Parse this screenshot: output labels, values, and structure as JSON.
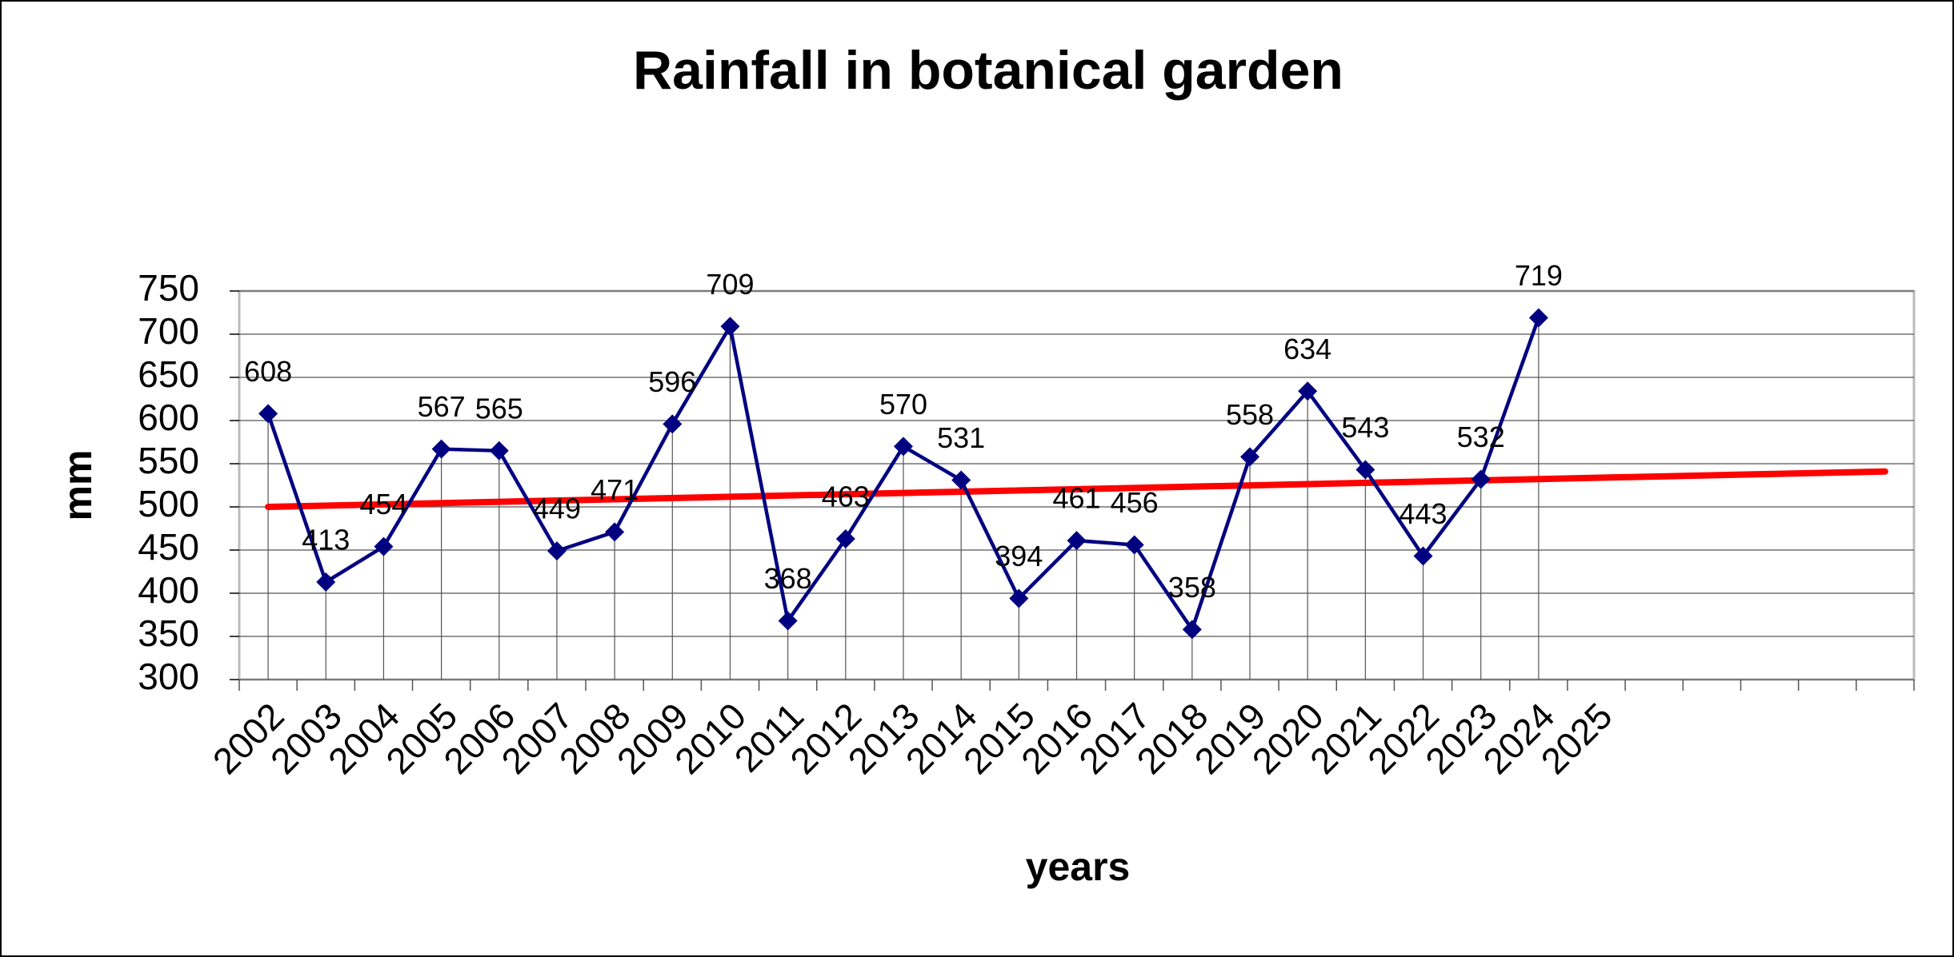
{
  "chart_data": {
    "type": "line",
    "title": "Rainfall in botanical garden",
    "xlabel": "years",
    "ylabel": "mm",
    "categories": [
      "2002",
      "2003",
      "2004",
      "2005",
      "2006",
      "2007",
      "2008",
      "2009",
      "2010",
      "2011",
      "2012",
      "2013",
      "2014",
      "2015",
      "2016",
      "2017",
      "2018",
      "2019",
      "2020",
      "2021",
      "2022",
      "2023",
      "2024",
      "2025",
      null,
      null,
      null,
      null,
      null
    ],
    "series": [
      {
        "color": "#000080",
        "values": [
          608,
          413,
          454,
          567,
          565,
          449,
          471,
          596,
          709,
          368,
          463,
          570,
          531,
          394,
          461,
          456,
          358,
          558,
          634,
          543,
          443,
          532,
          719,
          null,
          null,
          null,
          null,
          null,
          null
        ]
      }
    ],
    "trendline": {
      "color": "#ff0000",
      "values": [
        500,
        541
      ]
    },
    "ylim": [
      300,
      750
    ],
    "yticks": [
      300,
      350,
      400,
      450,
      500,
      550,
      600,
      650,
      700,
      750
    ],
    "grid": true,
    "data_labels": true
  }
}
